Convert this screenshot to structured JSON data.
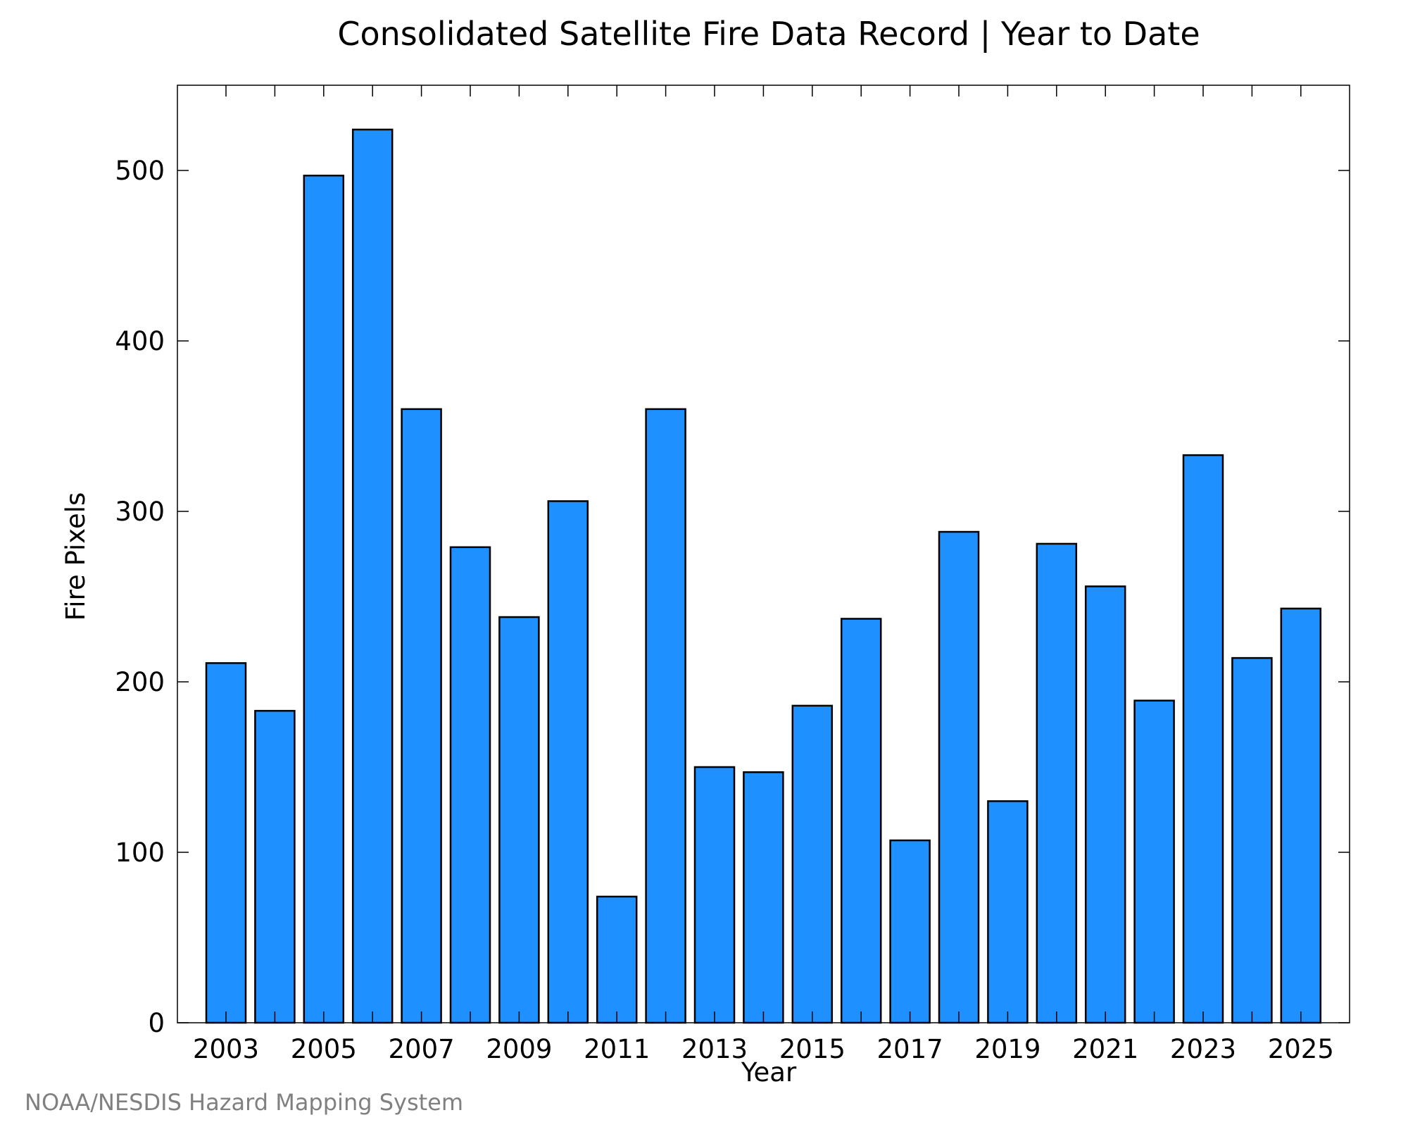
{
  "chart_data": {
    "type": "bar",
    "title": "Consolidated Satellite Fire Data Record | Year to Date",
    "xlabel": "Year",
    "ylabel": "Fire Pixels",
    "footer": "NOAA/NESDIS Hazard Mapping System",
    "categories": [
      "2003",
      "2004",
      "2005",
      "2006",
      "2007",
      "2008",
      "2009",
      "2010",
      "2011",
      "2012",
      "2013",
      "2014",
      "2015",
      "2016",
      "2017",
      "2018",
      "2019",
      "2020",
      "2021",
      "2022",
      "2023",
      "2024",
      "2025"
    ],
    "x_tick_labels": [
      "2003",
      "2005",
      "2007",
      "2009",
      "2011",
      "2013",
      "2015",
      "2017",
      "2019",
      "2021",
      "2023",
      "2025"
    ],
    "y_ticks": [
      0,
      100,
      200,
      300,
      400,
      500
    ],
    "series": [
      {
        "values": [
          211,
          183,
          497,
          524,
          360,
          279,
          238,
          306,
          74,
          360,
          150,
          147,
          186,
          237,
          107,
          288,
          130,
          281,
          256,
          189,
          333,
          214,
          243
        ]
      }
    ],
    "ylim": [
      0,
      550
    ],
    "grid": false,
    "colors": {
      "bar_fill": "#1e90ff",
      "bar_stroke": "#000000",
      "axis": "#000000",
      "text": "#000000",
      "footer_text": "#808080"
    }
  }
}
